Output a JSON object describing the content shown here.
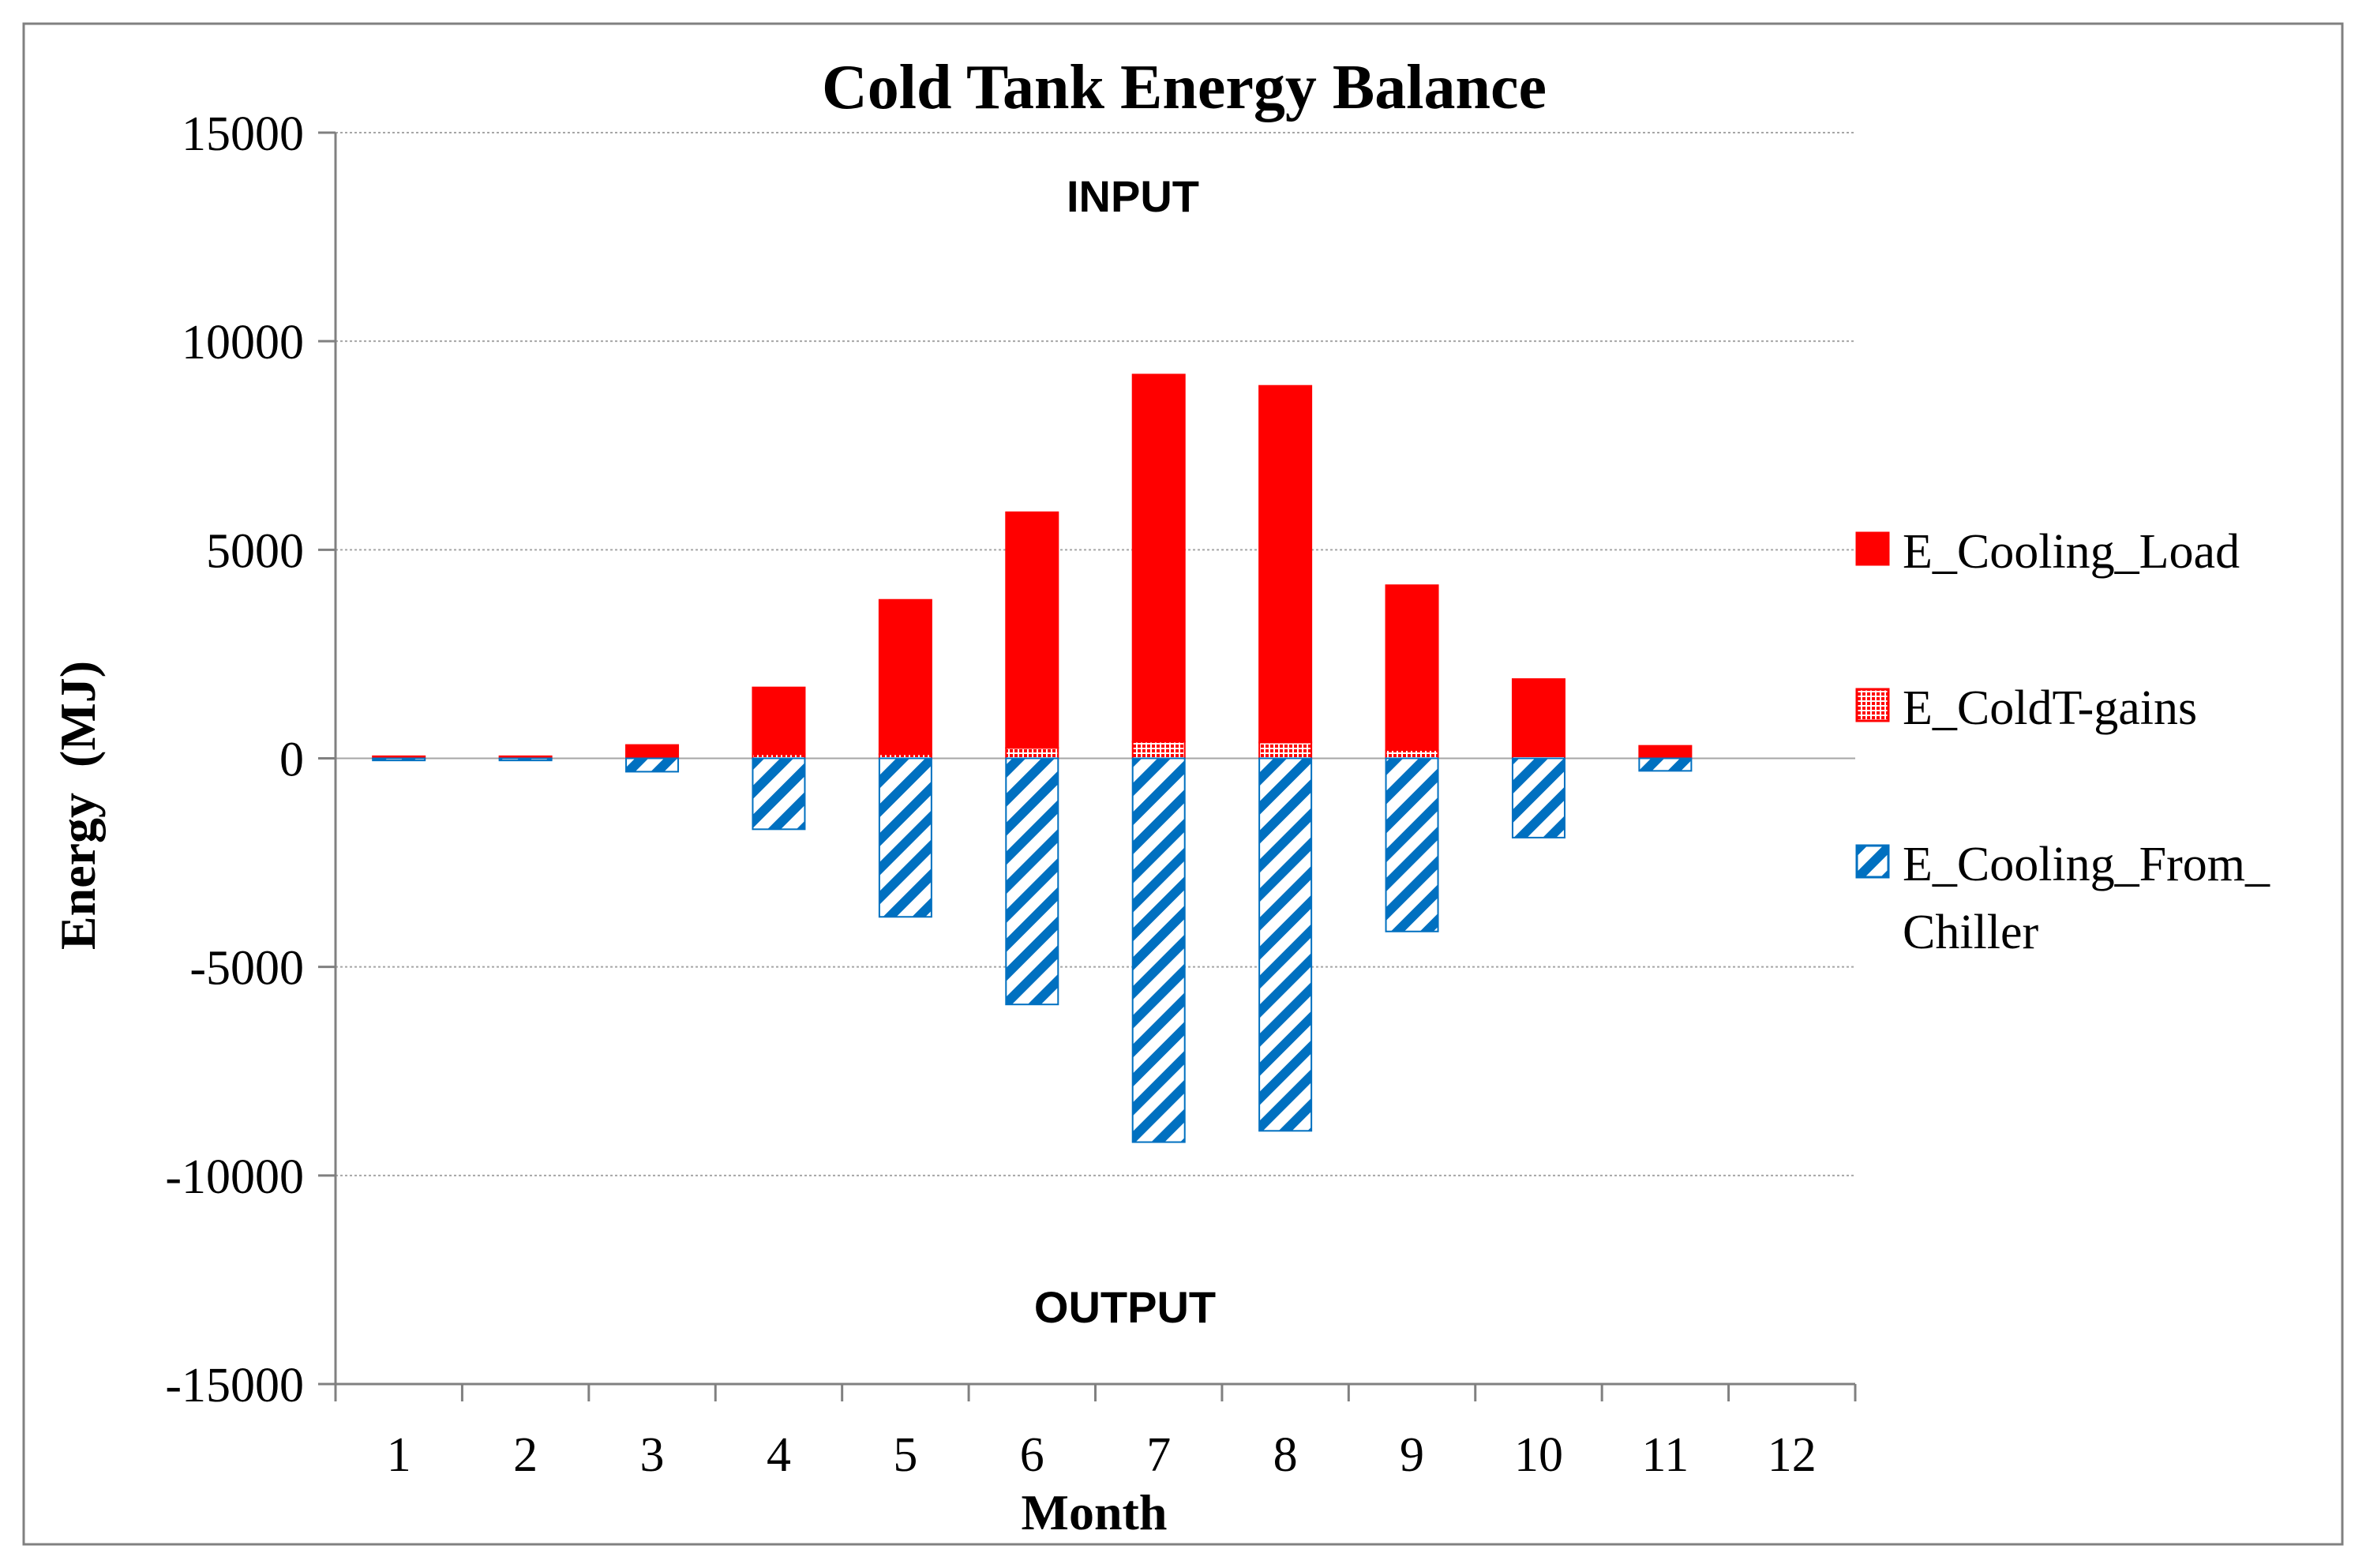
{
  "chart_data": {
    "type": "bar",
    "title": "Cold Tank Energy Balance",
    "xlabel": "Month",
    "ylabel": "Energy  (MJ)",
    "ylim": [
      -15000,
      15000
    ],
    "yticks": [
      15000,
      10000,
      5000,
      0,
      -5000,
      -10000,
      -15000
    ],
    "categories": [
      "1",
      "2",
      "3",
      "4",
      "5",
      "6",
      "7",
      "8",
      "9",
      "10",
      "11",
      "12"
    ],
    "grid": true,
    "legend_position": "right",
    "annotations": [
      "INPUT",
      "OUTPUT"
    ],
    "series": [
      {
        "name": "E_Cooling_Load",
        "color": "#ff0000",
        "pattern": "solid",
        "stack": "positive",
        "values": [
          50,
          50,
          300,
          1600,
          3700,
          5650,
          8800,
          8550,
          3950,
          1850,
          300,
          0
        ]
      },
      {
        "name": "E_ColdT-gains",
        "color": "#ff0000",
        "pattern": "dots",
        "stack": "positive",
        "values": [
          0,
          0,
          20,
          100,
          100,
          250,
          400,
          380,
          200,
          50,
          0,
          0
        ]
      },
      {
        "name": "E_Cooling_From_\nChiller",
        "color": "#0070c0",
        "pattern": "diagonal",
        "stack": "negative",
        "values": [
          -50,
          -50,
          -320,
          -1700,
          -3800,
          -5900,
          -9200,
          -8930,
          -4150,
          -1900,
          -300,
          0
        ]
      }
    ]
  }
}
